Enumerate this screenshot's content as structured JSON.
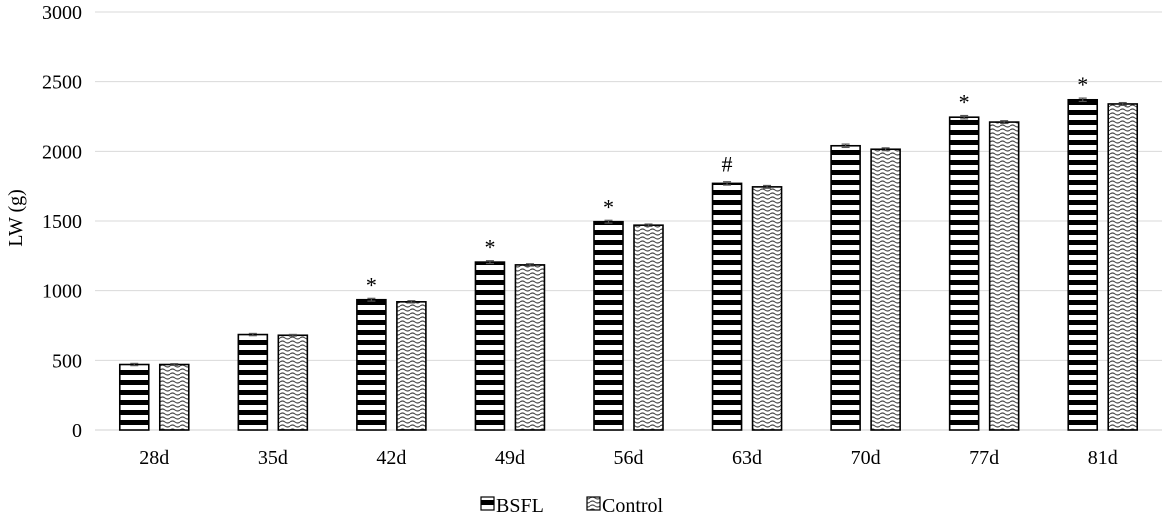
{
  "chart_data": {
    "type": "bar",
    "title": "",
    "xlabel": "",
    "ylabel": "LW (g)",
    "ylim": [
      0,
      3000
    ],
    "yticks": [
      0,
      500,
      1000,
      1500,
      2000,
      2500,
      3000
    ],
    "grid": true,
    "legend_position": "bottom-center",
    "categories": [
      "28d",
      "35d",
      "42d",
      "49d",
      "56d",
      "63d",
      "70d",
      "77d",
      "81d"
    ],
    "series": [
      {
        "name": "BSFL",
        "pattern": "horizontal-stripes",
        "values": [
          470,
          685,
          935,
          1205,
          1495,
          1770,
          2040,
          2245,
          2370
        ],
        "errors": [
          8,
          8,
          10,
          10,
          10,
          12,
          12,
          12,
          12
        ]
      },
      {
        "name": "Control",
        "pattern": "wave-hatch",
        "values": [
          470,
          680,
          920,
          1185,
          1470,
          1745,
          2015,
          2210,
          2340
        ],
        "errors": [
          6,
          6,
          8,
          8,
          8,
          10,
          10,
          10,
          10
        ]
      }
    ],
    "annotations": [
      "",
      "",
      "*",
      "*",
      "*",
      "#",
      "",
      "*",
      "*"
    ]
  },
  "colors": {
    "bar_stroke": "#000000",
    "bar_fill": "#ffffff",
    "stripe": "#000000",
    "wave": "#4a4a4a",
    "grid": "#d9d9d9"
  }
}
